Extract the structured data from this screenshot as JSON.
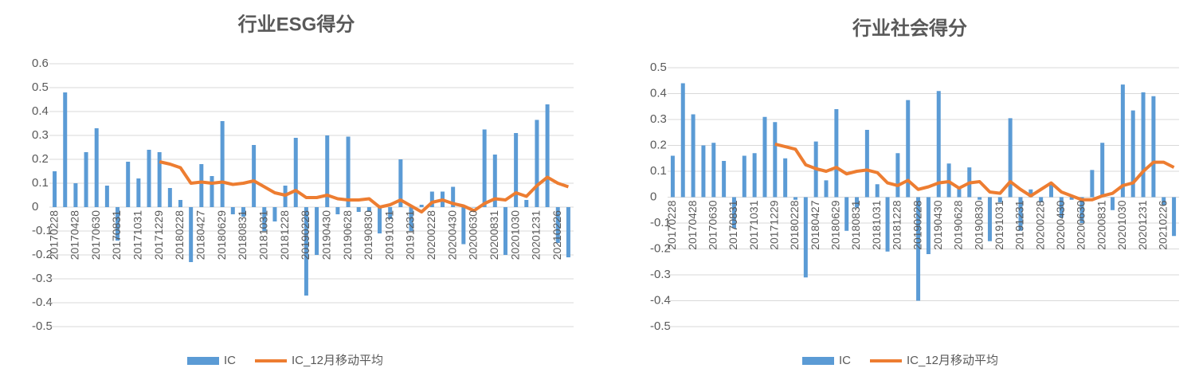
{
  "chart_data": [
    {
      "type": "bar_line",
      "title": "行业ESG得分",
      "categories": [
        "20170228",
        null,
        "20170428",
        null,
        "20170630",
        null,
        "20170831",
        null,
        "20171031",
        null,
        "20171229",
        null,
        "20180228",
        null,
        "20180427",
        null,
        "20180629",
        null,
        "20180831",
        null,
        "20181031",
        null,
        "20181228",
        null,
        "20190228",
        null,
        "20190430",
        null,
        "20190628",
        null,
        "20190830",
        null,
        "20191031",
        null,
        "20191231",
        null,
        "20200228",
        null,
        "20200430",
        null,
        "20200630",
        null,
        "20200831",
        null,
        "20201030",
        null,
        "20201231",
        null,
        "20210226",
        null
      ],
      "series": [
        {
          "name": "IC",
          "kind": "bar",
          "color": "#5b9bd5",
          "values": [
            0.15,
            0.48,
            0.1,
            0.23,
            0.33,
            0.09,
            -0.14,
            0.19,
            0.12,
            0.24,
            0.23,
            0.08,
            0.03,
            -0.23,
            0.18,
            0.13,
            0.36,
            -0.03,
            -0.04,
            0.26,
            -0.1,
            -0.06,
            0.09,
            0.29,
            -0.37,
            -0.2,
            0.3,
            -0.03,
            0.295,
            -0.02,
            -0.02,
            -0.11,
            -0.05,
            0.2,
            -0.1,
            0.01,
            0.065,
            0.065,
            0.085,
            -0.155,
            0,
            0.325,
            0.22,
            -0.2,
            0.31,
            0.03,
            0.365,
            0.43,
            -0.15,
            -0.21
          ]
        },
        {
          "name": "IC_12月移动平均",
          "kind": "line",
          "color": "#ed7d31",
          "values": [
            null,
            null,
            null,
            null,
            null,
            null,
            null,
            null,
            null,
            null,
            0.19,
            0.18,
            0.165,
            0.1,
            0.105,
            0.1,
            0.105,
            0.095,
            0.1,
            0.11,
            0.085,
            0.06,
            0.05,
            0.07,
            0.04,
            0.04,
            0.05,
            0.035,
            0.03,
            0.03,
            0.035,
            0,
            0.01,
            0.03,
            0.005,
            -0.02,
            0.02,
            0.03,
            0.015,
            0.005,
            -0.015,
            0.015,
            0.035,
            0.03,
            0.06,
            0.045,
            0.09,
            0.125,
            0.1,
            0.085
          ]
        }
      ],
      "ylim": [
        -0.5,
        0.6
      ],
      "yticks": [
        -0.5,
        -0.4,
        -0.3,
        -0.2,
        -0.1,
        0,
        0.1,
        0.2,
        0.3,
        0.4,
        0.5,
        0.6
      ]
    },
    {
      "type": "bar_line",
      "title": "行业社会得分",
      "categories": [
        "20170228",
        null,
        "20170428",
        null,
        "20170630",
        null,
        "20170831",
        null,
        "20171031",
        null,
        "20171229",
        null,
        "20180228",
        null,
        "20180427",
        null,
        "20180629",
        null,
        "20180831",
        null,
        "20181031",
        null,
        "20181228",
        null,
        "20190228",
        null,
        "20190430",
        null,
        "20190628",
        null,
        "20190830",
        null,
        "20191031",
        null,
        "20191231",
        null,
        "20200228",
        null,
        "20200430",
        null,
        "20200630",
        null,
        "20200831",
        null,
        "20201030",
        null,
        "20201231",
        null,
        "20210226",
        null
      ],
      "series": [
        {
          "name": "IC",
          "kind": "bar",
          "color": "#5b9bd5",
          "values": [
            0.16,
            0.44,
            0.32,
            0.2,
            0.21,
            0.14,
            -0.12,
            0.16,
            0.17,
            0.31,
            0.29,
            0.15,
            -0.01,
            -0.31,
            0.215,
            0.065,
            0.34,
            -0.13,
            -0.04,
            0.26,
            0.05,
            -0.21,
            0.17,
            0.375,
            -0.4,
            -0.22,
            0.41,
            0.13,
            0.04,
            0.115,
            -0.01,
            -0.17,
            -0.02,
            0.305,
            -0.13,
            0.03,
            -0.02,
            0.05,
            -0.08,
            -0.01,
            -0.1,
            0.105,
            0.21,
            -0.05,
            0.435,
            0.335,
            0.405,
            0.39,
            -0.03,
            -0.15
          ]
        },
        {
          "name": "IC_12月移动平均",
          "kind": "line",
          "color": "#ed7d31",
          "values": [
            null,
            null,
            null,
            null,
            null,
            null,
            null,
            null,
            null,
            null,
            0.205,
            0.195,
            0.185,
            0.125,
            0.11,
            0.1,
            0.115,
            0.09,
            0.1,
            0.105,
            0.095,
            0.055,
            0.045,
            0.065,
            0.03,
            0.04,
            0.055,
            0.06,
            0.035,
            0.055,
            0.06,
            0.02,
            0.015,
            0.06,
            0.03,
            0.005,
            0.03,
            0.055,
            0.02,
            0.005,
            -0.01,
            -0.01,
            0.005,
            0.015,
            0.045,
            0.055,
            0.1,
            0.135,
            0.135,
            0.115
          ]
        }
      ],
      "ylim": [
        -0.5,
        0.5
      ],
      "yticks": [
        -0.5,
        -0.4,
        -0.3,
        -0.2,
        -0.1,
        0,
        0.1,
        0.2,
        0.3,
        0.4,
        0.5
      ]
    }
  ]
}
